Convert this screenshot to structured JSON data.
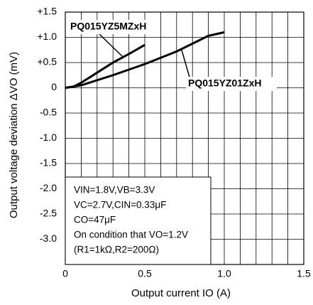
{
  "chart_data": {
    "type": "line",
    "xlabel": "Output current IO (A)",
    "ylabel": "Output voltage deviation ΔVO (mV)",
    "xlim": [
      0,
      1.5
    ],
    "ylim": [
      -3.5,
      1.5
    ],
    "xticks": [
      0,
      0.5,
      {
        "value": 1,
        "label": "1.0"
      },
      1.5
    ],
    "xgrid": [
      0.1,
      0.2,
      0.3,
      0.4,
      0.6,
      0.7,
      0.8,
      0.9,
      1.1,
      1.2,
      1.3,
      1.4
    ],
    "yticks": [
      {
        "value": 1.5,
        "label": "+1.5"
      },
      {
        "value": 1,
        "label": "+1.0"
      },
      {
        "value": 0.5,
        "label": "+0.5"
      },
      0,
      -0.5,
      {
        "value": -1,
        "label": "-1.0"
      },
      -1.5,
      {
        "value": -2,
        "label": "-2.0"
      },
      -2.5,
      {
        "value": -3,
        "label": "-3.0"
      }
    ],
    "grid": true,
    "series": [
      {
        "name": "PQ015YZ5MZxH",
        "color": "#000000",
        "x": [
          0,
          0.05,
          0.1,
          0.2,
          0.3,
          0.4,
          0.5
        ],
        "values": [
          0,
          0.02,
          0.1,
          0.3,
          0.5,
          0.67,
          0.85
        ]
      },
      {
        "name": "PQ015YZ01ZxH",
        "color": "#000000",
        "x": [
          0,
          0.1,
          0.3,
          0.5,
          0.7,
          0.9,
          1.0
        ],
        "values": [
          0,
          0.05,
          0.25,
          0.47,
          0.72,
          1.03,
          1.1
        ]
      }
    ],
    "conditions": [
      "VIN=1.8V,VB=3.3V",
      "VC=2.7V,CIN=0.33μF",
      "CO=47μF",
      "On condition that VO=1.2V",
      "(R1=1kΩ,R2=200Ω)"
    ]
  }
}
